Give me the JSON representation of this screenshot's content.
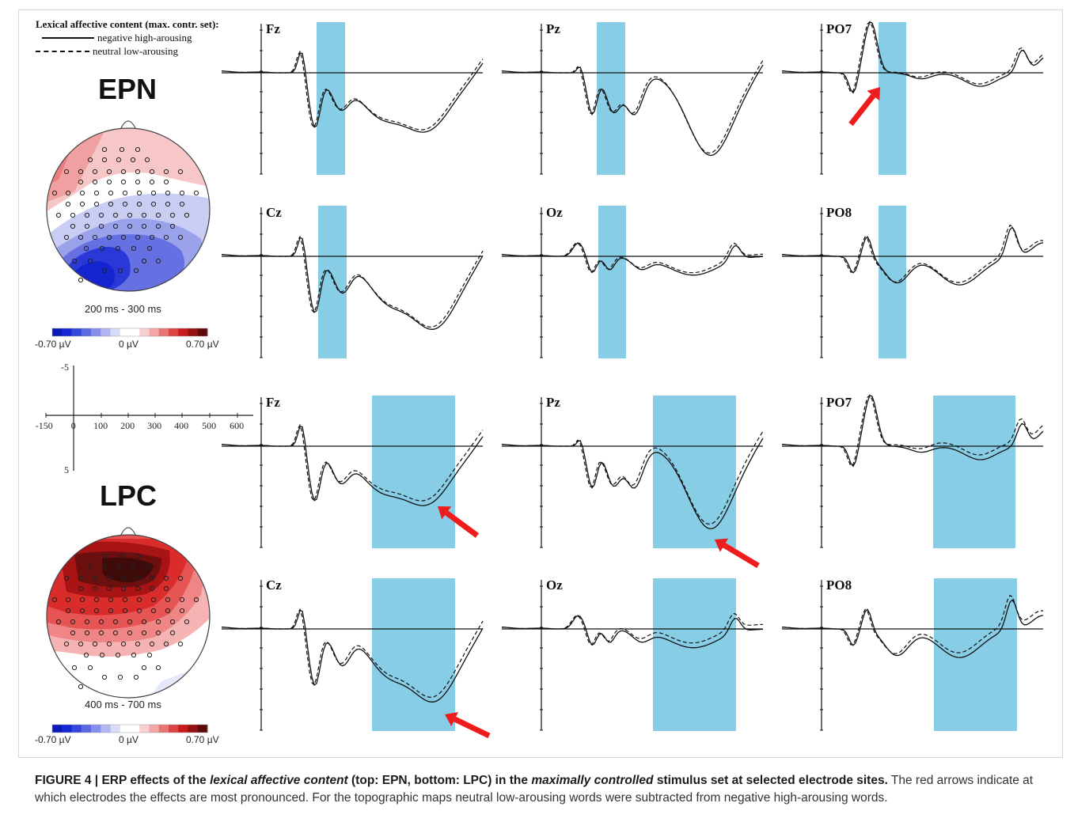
{
  "legend": {
    "title": "Lexical affective content (max. contr. set):",
    "solid": "negative high-arousing",
    "dashed": "neutral low-arousing"
  },
  "components": {
    "epn": {
      "title": "EPN",
      "time": "200 ms - 300 ms"
    },
    "lpc": {
      "title": "LPC",
      "time": "400 ms - 700 ms"
    }
  },
  "colorbar": {
    "min": "-0.70 µV",
    "mid": "0 µV",
    "max": "0.70 µV"
  },
  "scale": {
    "x_ticks": [
      "-150",
      "0",
      "100",
      "200",
      "300",
      "400",
      "500",
      "600"
    ],
    "y_top": "-5",
    "y_bottom": "5"
  },
  "electrodes": {
    "epn_row1": [
      "Fz",
      "Pz",
      "PO7"
    ],
    "epn_row2": [
      "Cz",
      "Oz",
      "PO8"
    ],
    "lpc_row1": [
      "Fz",
      "Pz",
      "PO7"
    ],
    "lpc_row2": [
      "Cz",
      "Oz",
      "PO8"
    ]
  },
  "colors": {
    "highlight": "#87cde6",
    "arrow": "#ee1c1c",
    "neg": "#1a33d8",
    "pos": "#d81818"
  },
  "caption": {
    "fig": "FIGURE 4 | ",
    "b1": "ERP effects of the ",
    "i1": "lexical affective content",
    "b2": " (top: EPN, bottom: LPC) in the ",
    "i2": "maximally controlled",
    "b3": " stimulus set at selected electrode sites.",
    "rest": " The red arrows indicate at which electrodes the effects are most pronounced. For the topographic maps neutral low-arousing words were subtracted from negative high-arousing words."
  }
}
